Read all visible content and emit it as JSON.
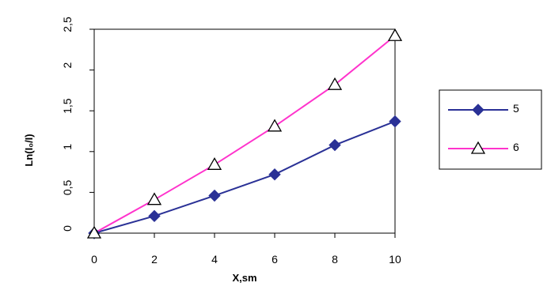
{
  "chart_data": {
    "type": "line",
    "xlabel": "X,sm",
    "ylabel": "Ln(I₀/I)",
    "xlim": [
      0,
      10
    ],
    "ylim": [
      0,
      2.5
    ],
    "x_ticks": [
      "0",
      "2",
      "4",
      "6",
      "8",
      "10"
    ],
    "y_ticks": [
      "0",
      "0,5",
      "1",
      "1,5",
      "2",
      "2,5"
    ],
    "x": [
      0,
      2,
      4,
      6,
      8,
      10
    ],
    "grid": false,
    "legend_position": "right",
    "series": [
      {
        "name": "5",
        "values": [
          0,
          0.21,
          0.46,
          0.72,
          1.08,
          1.37
        ],
        "color": "#2a3196",
        "marker": "diamond"
      },
      {
        "name": "6",
        "values": [
          0,
          0.41,
          0.84,
          1.31,
          1.82,
          2.42
        ],
        "color": "#ff33cc",
        "marker": "triangle"
      }
    ]
  }
}
